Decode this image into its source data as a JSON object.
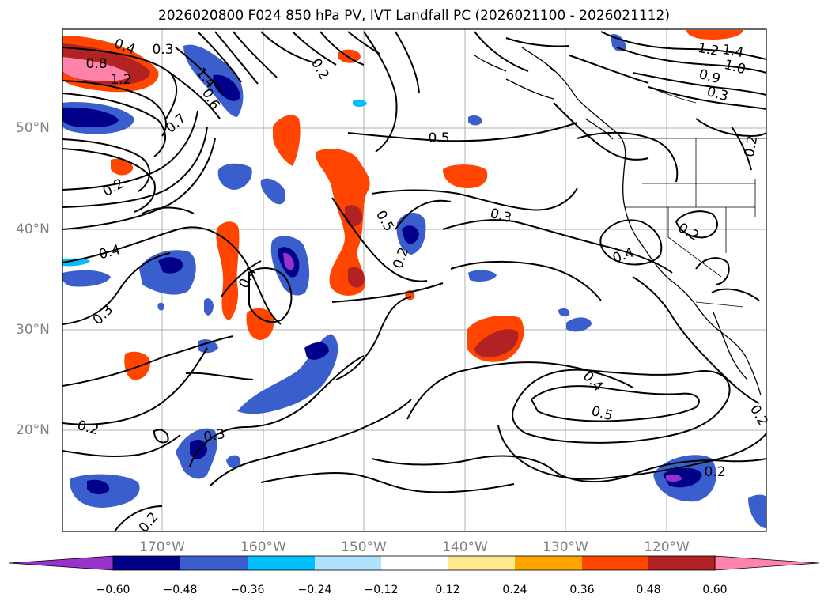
{
  "title": "2026020800 F024 850 hPa PV, IVT Landfall PC (2026021100 - 2026021112)",
  "lat_labels": [
    "50°N",
    "40°N",
    "30°N",
    "20°N"
  ],
  "lon_labels": [
    "170°W",
    "160°W",
    "150°W",
    "140°W",
    "130°W",
    "120°W"
  ],
  "colorbar": {
    "ticks": [
      "−0.60",
      "−0.48",
      "−0.36",
      "−0.24",
      "−0.12",
      "0.12",
      "0.24",
      "0.36",
      "0.48",
      "0.60"
    ],
    "colors": [
      "#9932cc",
      "#00008b",
      "#3a5fcd",
      "#00bfff",
      "#b0e2ff",
      "#ffffff",
      "#ffe98f",
      "#ffa500",
      "#ff4500",
      "#b22222",
      "#ff82ab"
    ]
  },
  "contour_labels": [
    "0.4",
    "0.3",
    "0.8",
    "1.2",
    "1.4",
    "0.6",
    "0.7",
    "0.2",
    "0.5",
    "0.3",
    "0.4",
    "0.5",
    "0.2",
    "0.4",
    "0.3",
    "0.4",
    "0.5",
    "0.2",
    "0.3",
    "0.2",
    "0.2",
    "0.2",
    "1.2",
    "1.4",
    "1.0",
    "0.9",
    "0.3",
    "0.2",
    "0.4",
    "0.2",
    "0.2"
  ]
}
